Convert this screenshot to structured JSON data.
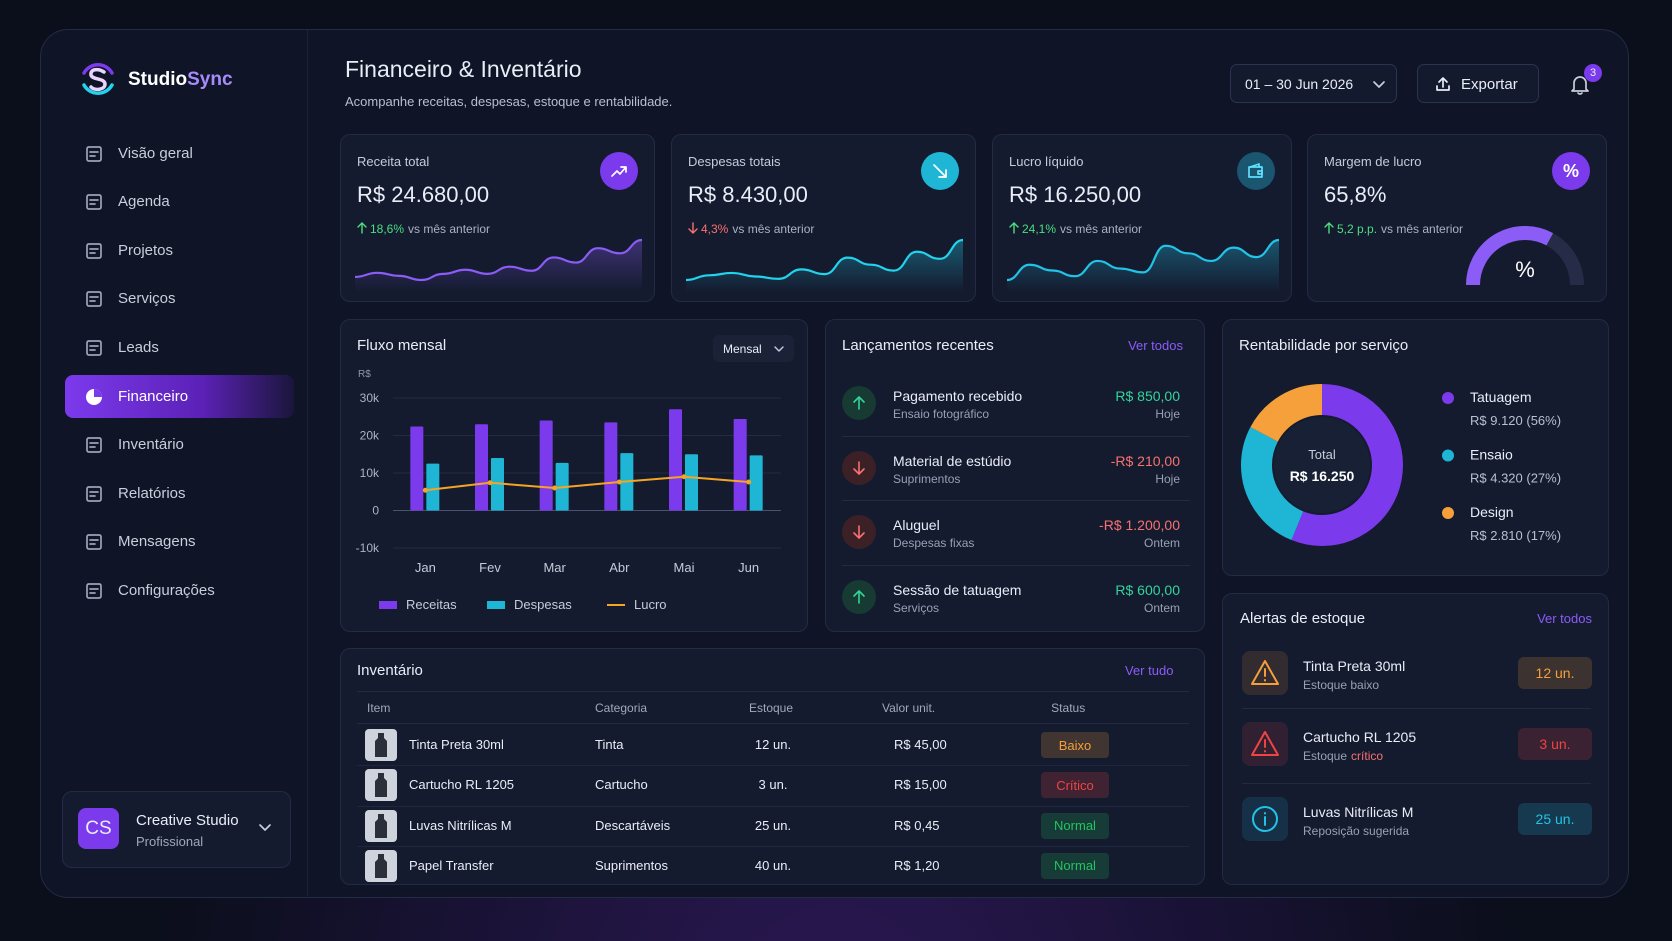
{
  "brand": {
    "prefix": "Studio",
    "suffix": "Sync"
  },
  "nav": [
    {
      "label": "Visão geral"
    },
    {
      "label": "Agenda"
    },
    {
      "label": "Projetos"
    },
    {
      "label": "Serviços"
    },
    {
      "label": "Leads"
    },
    {
      "label": "Financeiro",
      "active": true
    },
    {
      "label": "Inventário"
    },
    {
      "label": "Relatórios"
    },
    {
      "label": "Mensagens"
    },
    {
      "label": "Configurações"
    }
  ],
  "user": {
    "initials": "CS",
    "name": "Creative Studio",
    "plan": "Profissional"
  },
  "header": {
    "title": "Financeiro & Inventário",
    "subtitle": "Acompanhe receitas, despesas, estoque e rentabilidade.",
    "date_range": "01 – 30 Jun 2026",
    "export": "Exportar",
    "notifications": 3
  },
  "kpis": [
    {
      "label": "Receita total",
      "value": "R$ 24.680,00",
      "delta": "18,6%",
      "note": "vs mês anterior",
      "trend": "up",
      "color": "#8b5cf6",
      "icon_color": "#7c3aed",
      "spark": [
        30,
        34,
        31,
        27,
        33,
        37,
        33,
        40,
        36,
        49,
        44,
        58,
        53,
        66
      ]
    },
    {
      "label": "Despesas totais",
      "value": "R$ 8.430,00",
      "delta": "4,3%",
      "note": "vs mês anterior",
      "trend": "down",
      "color": "#22d3ee",
      "icon_color": "#1fb6d6",
      "spark": [
        22,
        26,
        28,
        25,
        23,
        31,
        27,
        41,
        35,
        30,
        46,
        40,
        56
      ]
    },
    {
      "label": "Lucro líquido",
      "value": "R$ 16.250,00",
      "delta": "24,1%",
      "note": "vs mês anterior",
      "trend": "up",
      "color": "#22c3e6",
      "icon_color": "#1b5670",
      "spark": [
        20,
        28,
        25,
        22,
        30,
        26,
        24,
        38,
        34,
        30,
        37,
        32,
        41
      ]
    },
    {
      "label": "Margem de lucro",
      "value": "65,8%",
      "delta": "5,2 p.p.",
      "note": "vs mês anterior",
      "trend": "up",
      "color": "#8b5cf6",
      "icon_color": "#7c3aed",
      "icon_text": "%",
      "gauge": 65.8,
      "gauge_label": "%"
    }
  ],
  "fluxo_mensal": {
    "type": "bar",
    "title": "Fluxo mensal",
    "period": "Mensal",
    "y_unit": "R$",
    "categories": [
      "Jan",
      "Fev",
      "Mar",
      "Abr",
      "Mai",
      "Jun"
    ],
    "series": [
      {
        "name": "Receitas",
        "color": "#7c3aed",
        "values": [
          22400,
          23000,
          24000,
          23500,
          27000,
          24400
        ]
      },
      {
        "name": "Despesas",
        "color": "#1fb6d6",
        "values": [
          12500,
          14000,
          12700,
          15300,
          15000,
          14700
        ]
      },
      {
        "name": "Lucro",
        "type": "line",
        "color": "#f5a524",
        "values": [
          5400,
          7400,
          6000,
          7600,
          9000,
          7600
        ]
      }
    ],
    "ylim": [
      -10000,
      30000
    ],
    "yticks": [
      {
        "value": -10000,
        "label": "-10k"
      },
      0,
      {
        "value": 10000,
        "label": "10k"
      },
      {
        "value": 20000,
        "label": "20k"
      },
      {
        "value": 30000,
        "label": "30k"
      }
    ],
    "grid": true
  },
  "lancamentos": {
    "title": "Lançamentos recentes",
    "link": "Ver todos",
    "items": [
      {
        "title": "Pagamento recebido",
        "subtitle": "Ensaio fotográfico",
        "amount": "R$ 850,00",
        "when": "Hoje",
        "direction": "in"
      },
      {
        "title": "Material de estúdio",
        "subtitle": "Suprimentos",
        "amount": "-R$ 210,00",
        "when": "Hoje",
        "direction": "out"
      },
      {
        "title": "Aluguel",
        "subtitle": "Despesas fixas",
        "amount": "-R$ 1.200,00",
        "when": "Ontem",
        "direction": "out"
      },
      {
        "title": "Sessão de tatuagem",
        "subtitle": "Serviços",
        "amount": "R$ 600,00",
        "when": "Ontem",
        "direction": "in"
      }
    ]
  },
  "rentabilidade": {
    "type": "donut",
    "title": "Rentabilidade por serviço",
    "center_label": "Total",
    "center_value": "R$ 16.250",
    "categories": [
      "Tatuagem",
      "Ensaio",
      "Design"
    ],
    "values": [
      9120,
      4320,
      2810
    ],
    "value_labels": [
      "R$ 9.120 (56%)",
      "R$ 4.320 (27%)",
      "R$ 2.810 (17%)"
    ],
    "colors": [
      "#7c3aed",
      "#1fb6d6",
      "#f5a03b"
    ]
  },
  "inventario": {
    "title": "Inventário",
    "link": "Ver tudo",
    "columns": [
      "Item",
      "Categoria",
      "Estoque",
      "Valor unit.",
      "Status"
    ],
    "rows": [
      [
        "Tinta Preta 30ml",
        "Tinta",
        "12 un.",
        "R$ 45,00",
        "Baixo"
      ],
      [
        "Cartucho RL 1205",
        "Cartucho",
        "3 un.",
        "R$ 15,00",
        "Crítico"
      ],
      [
        "Luvas Nitrílicas M",
        "Descartáveis",
        "25 un.",
        "R$ 0,45",
        "Normal"
      ],
      [
        "Papel Transfer",
        "Suprimentos",
        "40 un.",
        "R$ 1,20",
        "Normal"
      ]
    ],
    "status_colors": [
      "#f59e3b",
      "#ef4444",
      "#22c55e",
      "#22c55e"
    ]
  },
  "alertas": {
    "title": "Alertas de estoque",
    "link": "Ver todos",
    "items": [
      {
        "title": "Tinta Preta 30ml",
        "subtitle": "Estoque baixo",
        "badge": "12 un.",
        "color": "#f59e3b",
        "level": "warning"
      },
      {
        "title": "Cartucho RL 1205",
        "subtitle": "Estoque",
        "subtitle_em": "crítico",
        "badge": "3 un.",
        "color": "#ef4444",
        "level": "warning"
      },
      {
        "title": "Luvas Nitrílicas M",
        "subtitle": "Reposição sugerida",
        "badge": "25 un.",
        "color": "#22c3e6",
        "level": "info"
      }
    ]
  }
}
